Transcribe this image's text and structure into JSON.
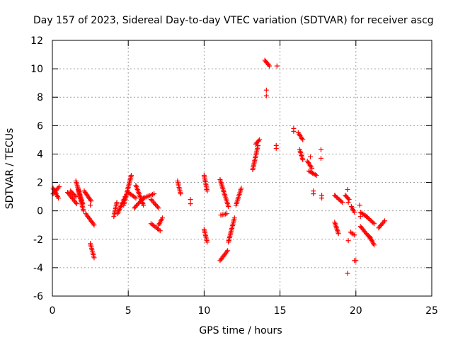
{
  "chart_data": {
    "type": "scatter",
    "title": "Day 157 of 2023, Sidereal Day-to-day VTEC variation (SDTVAR) for receiver ascg",
    "xlabel": "GPS time / hours",
    "ylabel": "SDTVAR / TECUs",
    "xlim": [
      0,
      25
    ],
    "ylim": [
      -6,
      12
    ],
    "xticks": [
      0,
      5,
      10,
      15,
      20,
      25
    ],
    "yticks": [
      -6,
      -4,
      -2,
      0,
      2,
      4,
      6,
      8,
      10,
      12
    ],
    "grid": true,
    "marker": "+",
    "color": "#ff0000",
    "segments": [
      {
        "x0": 0.05,
        "y0": 1.2,
        "x1": 0.45,
        "y1": 1.7
      },
      {
        "x0": 0.05,
        "y0": 1.6,
        "x1": 0.4,
        "y1": 0.9
      },
      {
        "x0": 1.0,
        "y0": 1.3,
        "x1": 1.6,
        "y1": 0.5
      },
      {
        "x0": 1.2,
        "y0": 1.4,
        "x1": 1.55,
        "y1": 1.0
      },
      {
        "x0": 1.55,
        "y0": 2.1,
        "x1": 2.0,
        "y1": 0.5
      },
      {
        "x0": 1.7,
        "y0": 1.5,
        "x1": 2.05,
        "y1": 0.0
      },
      {
        "x0": 2.1,
        "y0": 1.4,
        "x1": 2.55,
        "y1": 0.7
      },
      {
        "x0": 2.2,
        "y0": -0.2,
        "x1": 2.75,
        "y1": -1.0
      },
      {
        "x0": 2.5,
        "y0": -2.3,
        "x1": 2.75,
        "y1": -3.3
      },
      {
        "x0": 4.05,
        "y0": -0.4,
        "x1": 4.25,
        "y1": 0.6
      },
      {
        "x0": 4.3,
        "y0": -0.2,
        "x1": 4.8,
        "y1": 1.0
      },
      {
        "x0": 4.7,
        "y0": 0.4,
        "x1": 5.2,
        "y1": 2.5
      },
      {
        "x0": 5.0,
        "y0": 1.3,
        "x1": 5.5,
        "y1": 0.9
      },
      {
        "x0": 5.5,
        "y0": 1.8,
        "x1": 6.0,
        "y1": 0.4
      },
      {
        "x0": 5.4,
        "y0": 0.2,
        "x1": 6.0,
        "y1": 0.9
      },
      {
        "x0": 6.0,
        "y0": 0.9,
        "x1": 6.7,
        "y1": 1.2
      },
      {
        "x0": 6.5,
        "y0": 0.8,
        "x1": 7.0,
        "y1": 0.2
      },
      {
        "x0": 6.5,
        "y0": -0.9,
        "x1": 7.1,
        "y1": -1.4
      },
      {
        "x0": 7.0,
        "y0": -1.0,
        "x1": 7.25,
        "y1": -0.5
      },
      {
        "x0": 8.25,
        "y0": 2.1,
        "x1": 8.45,
        "y1": 1.2
      },
      {
        "x0": 10.0,
        "y0": 2.5,
        "x1": 10.2,
        "y1": 1.4
      },
      {
        "x0": 10.0,
        "y0": -1.3,
        "x1": 10.2,
        "y1": -2.2
      },
      {
        "x0": 11.05,
        "y0": 2.2,
        "x1": 11.6,
        "y1": 0.3
      },
      {
        "x0": 11.05,
        "y0": -3.5,
        "x1": 11.55,
        "y1": -2.8
      },
      {
        "x0": 11.1,
        "y0": -0.3,
        "x1": 11.5,
        "y1": -0.2
      },
      {
        "x0": 11.6,
        "y0": -2.2,
        "x1": 12.0,
        "y1": -0.5
      },
      {
        "x0": 12.1,
        "y0": 0.4,
        "x1": 12.45,
        "y1": 1.6
      },
      {
        "x0": 13.2,
        "y0": 2.9,
        "x1": 13.55,
        "y1": 4.6
      },
      {
        "x0": 13.4,
        "y0": 4.7,
        "x1": 13.65,
        "y1": 5.0
      },
      {
        "x0": 14.0,
        "y0": 10.6,
        "x1": 14.3,
        "y1": 10.2
      },
      {
        "x0": 16.2,
        "y0": 5.5,
        "x1": 16.5,
        "y1": 5.0
      },
      {
        "x0": 16.3,
        "y0": 4.3,
        "x1": 16.5,
        "y1": 3.6
      },
      {
        "x0": 16.8,
        "y0": 3.5,
        "x1": 17.1,
        "y1": 3.0
      },
      {
        "x0": 16.9,
        "y0": 2.8,
        "x1": 17.4,
        "y1": 2.5
      },
      {
        "x0": 18.6,
        "y0": 1.1,
        "x1": 19.1,
        "y1": 0.6
      },
      {
        "x0": 18.6,
        "y0": -0.8,
        "x1": 18.85,
        "y1": -1.6
      },
      {
        "x0": 19.3,
        "y0": 1.1,
        "x1": 19.55,
        "y1": 0.8
      },
      {
        "x0": 19.7,
        "y0": 0.3,
        "x1": 19.9,
        "y1": -0.1
      },
      {
        "x0": 19.65,
        "y0": -1.5,
        "x1": 19.9,
        "y1": -1.7
      },
      {
        "x0": 20.3,
        "y0": -0.1,
        "x1": 20.7,
        "y1": -0.4
      },
      {
        "x0": 20.3,
        "y0": -1.1,
        "x1": 21.0,
        "y1": -2.0
      },
      {
        "x0": 20.7,
        "y0": -0.4,
        "x1": 21.2,
        "y1": -0.9
      },
      {
        "x0": 20.9,
        "y0": -1.8,
        "x1": 21.2,
        "y1": -2.4
      },
      {
        "x0": 21.5,
        "y0": -1.2,
        "x1": 21.9,
        "y1": -0.7
      }
    ],
    "points": [
      {
        "x": 2.5,
        "y": 0.4
      },
      {
        "x": 9.1,
        "y": 0.5
      },
      {
        "x": 9.1,
        "y": 0.8
      },
      {
        "x": 14.1,
        "y": 8.5
      },
      {
        "x": 14.1,
        "y": 8.1
      },
      {
        "x": 14.8,
        "y": 10.2
      },
      {
        "x": 14.75,
        "y": 4.6
      },
      {
        "x": 14.75,
        "y": 4.4
      },
      {
        "x": 15.9,
        "y": 5.8
      },
      {
        "x": 15.9,
        "y": 5.6
      },
      {
        "x": 17.0,
        "y": 3.8
      },
      {
        "x": 17.2,
        "y": 1.4
      },
      {
        "x": 17.2,
        "y": 1.2
      },
      {
        "x": 17.7,
        "y": 4.3
      },
      {
        "x": 17.7,
        "y": 3.7
      },
      {
        "x": 17.75,
        "y": 1.1
      },
      {
        "x": 17.75,
        "y": 0.9
      },
      {
        "x": 19.45,
        "y": 1.5
      },
      {
        "x": 19.5,
        "y": 0.6
      },
      {
        "x": 19.5,
        "y": -2.1
      },
      {
        "x": 19.45,
        "y": -4.4
      },
      {
        "x": 19.9,
        "y": -3.5
      },
      {
        "x": 20.0,
        "y": -3.5
      },
      {
        "x": 20.25,
        "y": 0.4
      },
      {
        "x": 20.3,
        "y": -0.4
      }
    ]
  }
}
